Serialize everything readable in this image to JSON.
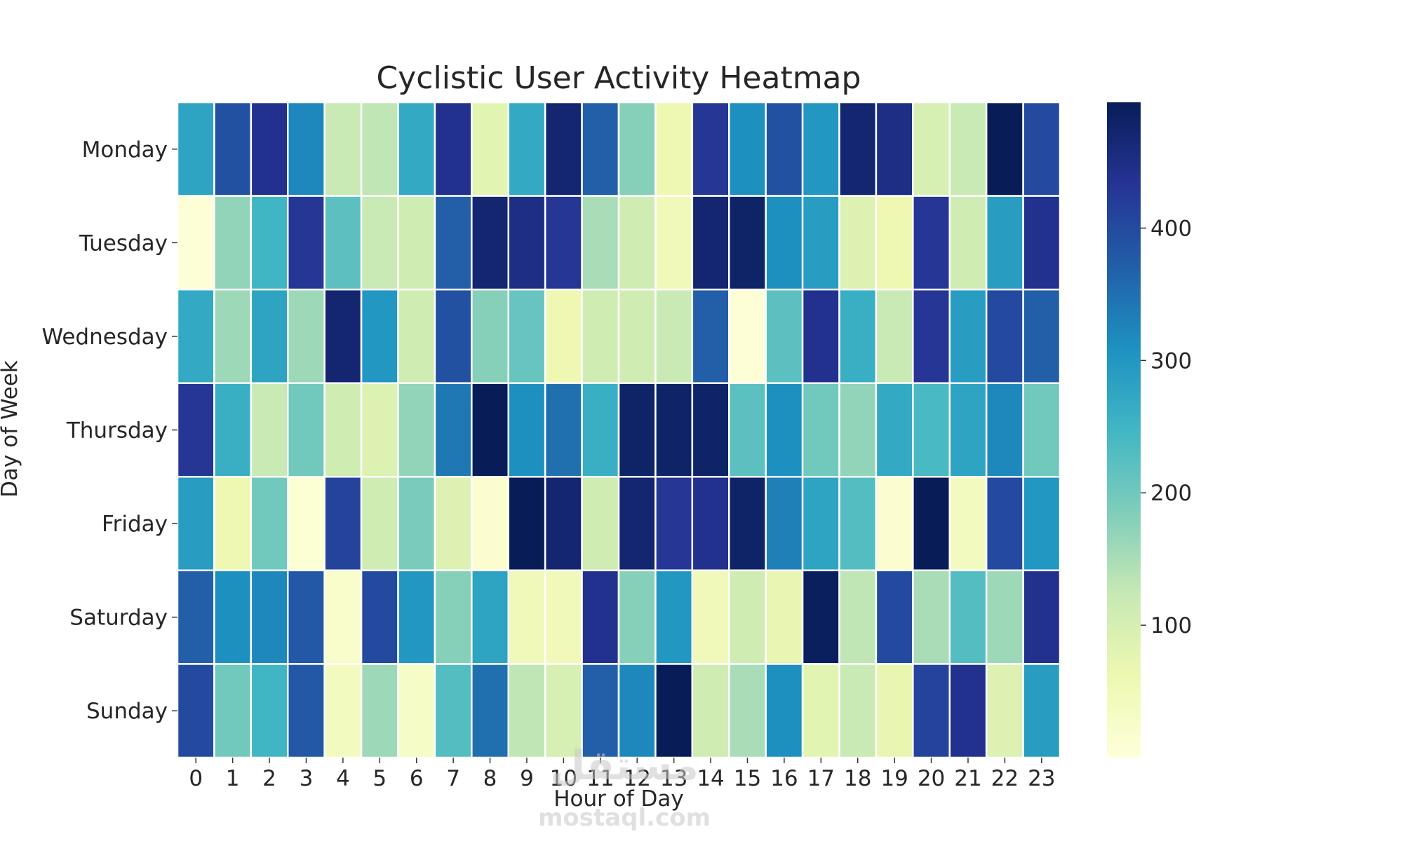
{
  "chart_data": {
    "type": "heatmap",
    "title": "Cyclistic User Activity Heatmap",
    "xlabel": "Hour of Day",
    "ylabel": "Day of Week",
    "x_categories": [
      "0",
      "1",
      "2",
      "3",
      "4",
      "5",
      "6",
      "7",
      "8",
      "9",
      "10",
      "11",
      "12",
      "13",
      "14",
      "15",
      "16",
      "17",
      "18",
      "19",
      "20",
      "21",
      "22",
      "23"
    ],
    "y_categories": [
      "Monday",
      "Tuesday",
      "Wednesday",
      "Thursday",
      "Friday",
      "Saturday",
      "Sunday"
    ],
    "values": [
      [
        280,
        390,
        440,
        320,
        120,
        130,
        270,
        440,
        80,
        270,
        470,
        370,
        180,
        60,
        430,
        310,
        390,
        300,
        470,
        450,
        100,
        120,
        495,
        400
      ],
      [
        5,
        170,
        250,
        430,
        220,
        120,
        110,
        370,
        470,
        450,
        430,
        150,
        110,
        50,
        470,
        480,
        310,
        290,
        90,
        60,
        430,
        110,
        290,
        440
      ],
      [
        270,
        160,
        280,
        160,
        470,
        300,
        110,
        390,
        180,
        210,
        60,
        110,
        110,
        120,
        370,
        5,
        220,
        440,
        260,
        120,
        430,
        290,
        400,
        370
      ],
      [
        430,
        260,
        120,
        200,
        110,
        90,
        170,
        340,
        495,
        310,
        350,
        260,
        480,
        480,
        480,
        220,
        310,
        200,
        170,
        270,
        240,
        280,
        320,
        200
      ],
      [
        290,
        60,
        200,
        10,
        410,
        110,
        190,
        90,
        15,
        495,
        470,
        110,
        470,
        430,
        440,
        480,
        330,
        280,
        230,
        15,
        495,
        40,
        400,
        300
      ],
      [
        370,
        310,
        320,
        380,
        20,
        400,
        300,
        180,
        280,
        50,
        50,
        440,
        180,
        300,
        50,
        110,
        70,
        490,
        130,
        400,
        150,
        230,
        160,
        440
      ],
      [
        400,
        200,
        250,
        380,
        40,
        160,
        30,
        230,
        350,
        130,
        100,
        370,
        320,
        495,
        110,
        150,
        310,
        80,
        120,
        70,
        410,
        440,
        90,
        290
      ]
    ],
    "vmin": 0,
    "vmax": 495,
    "colorscale": "YlGnBu",
    "colorbar_ticks": [
      100,
      200,
      300,
      400
    ],
    "grid": false,
    "cell_border_color": "#ffffff"
  },
  "watermark": {
    "arabic": "مستقل",
    "latin": "mostaql.com"
  }
}
